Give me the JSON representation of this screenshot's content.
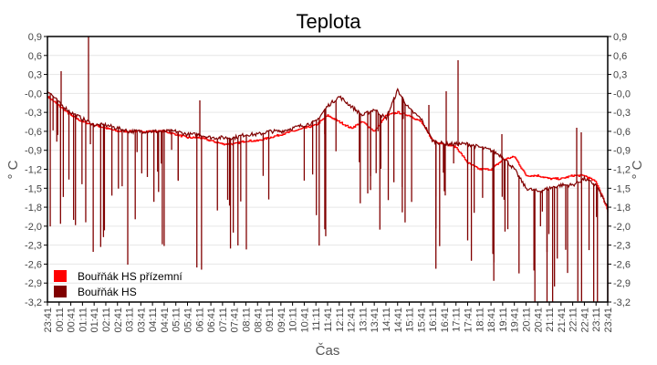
{
  "chart_data": {
    "type": "line",
    "title": "Teplota",
    "xlabel": "Čas",
    "ylabel": "° C",
    "ylabel_right": "° C",
    "ylim": [
      -3.2,
      0.9
    ],
    "yticks": [
      "0,9",
      "0,6",
      "0,3",
      "-0,0",
      "-0,3",
      "-0,6",
      "-0,9",
      "-1,2",
      "-1,5",
      "-1,8",
      "-2,0",
      "-2,3",
      "-2,6",
      "-2,9",
      "-3,2"
    ],
    "x": [
      "23:41",
      "00:11",
      "00:41",
      "01:11",
      "01:41",
      "02:11",
      "02:41",
      "03:11",
      "03:41",
      "04:11",
      "04:41",
      "05:11",
      "05:41",
      "06:11",
      "06:41",
      "07:11",
      "07:41",
      "08:11",
      "08:41",
      "09:11",
      "09:41",
      "10:11",
      "10:41",
      "11:11",
      "11:41",
      "12:11",
      "12:41",
      "13:11",
      "13:41",
      "14:11",
      "14:41",
      "15:11",
      "15:41",
      "16:11",
      "16:41",
      "17:11",
      "17:41",
      "18:11",
      "18:41",
      "19:11",
      "19:41",
      "20:11",
      "20:41",
      "21:11",
      "21:41",
      "22:11",
      "22:41",
      "23:11",
      "23:41"
    ],
    "grid": true,
    "legend_position": "lower-left inside",
    "series": [
      {
        "name": "Bouřňák HS přízemní",
        "color": "#ff0000",
        "values": [
          -0.05,
          -0.2,
          -0.35,
          -0.45,
          -0.5,
          -0.55,
          -0.6,
          -0.6,
          -0.6,
          -0.6,
          -0.6,
          -0.65,
          -0.7,
          -0.7,
          -0.75,
          -0.8,
          -0.8,
          -0.75,
          -0.75,
          -0.7,
          -0.65,
          -0.6,
          -0.55,
          -0.5,
          -0.35,
          -0.45,
          -0.55,
          -0.45,
          -0.6,
          -0.35,
          -0.3,
          -0.35,
          -0.45,
          -0.75,
          -0.8,
          -0.85,
          -1.1,
          -1.2,
          -1.2,
          -1.05,
          -1.0,
          -1.3,
          -1.3,
          -1.35,
          -1.35,
          -1.3,
          -1.3,
          -1.4,
          -1.85
        ]
      },
      {
        "name": "Bouřňák HS",
        "color": "#800000",
        "values": [
          0.05,
          -0.15,
          -0.3,
          -0.4,
          -0.5,
          -0.5,
          -0.55,
          -0.6,
          -0.6,
          -0.6,
          -0.6,
          -0.6,
          -0.65,
          -0.65,
          -0.7,
          -0.7,
          -0.7,
          -0.65,
          -0.65,
          -0.6,
          -0.6,
          -0.55,
          -0.5,
          -0.45,
          -0.2,
          -0.05,
          -0.2,
          -0.35,
          -0.25,
          -0.4,
          0.05,
          -0.25,
          -0.4,
          -0.75,
          -0.8,
          -0.8,
          -0.8,
          -0.85,
          -0.9,
          -1.0,
          -1.2,
          -1.5,
          -1.55,
          -1.5,
          -1.45,
          -1.45,
          -1.35,
          -1.45,
          -1.8
        ]
      }
    ]
  },
  "legend": {
    "items": [
      {
        "label": "Bouřňák HS přízemní",
        "color": "#ff0000"
      },
      {
        "label": "Bouřňák HS",
        "color": "#800000"
      }
    ]
  }
}
